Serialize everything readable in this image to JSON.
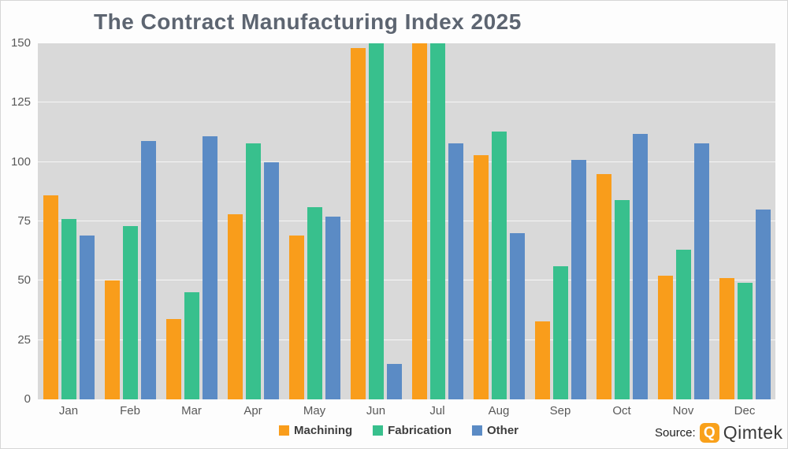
{
  "title": "The Contract Manufacturing Index 2025",
  "source": {
    "label": "Source:",
    "brand": "Qimtek",
    "logo_letter": "Q"
  },
  "colors": {
    "machining": "#f99d1b",
    "fabrication": "#38c08d",
    "other": "#5b8bc5",
    "plot_background": "#d9d9d9",
    "grid_line": "#efefef",
    "title_text": "#5d6571",
    "axis_text": "#595959"
  },
  "chart_data": {
    "type": "bar",
    "title": "The Contract Manufacturing Index 2025",
    "categories": [
      "Jan",
      "Feb",
      "Mar",
      "Apr",
      "May",
      "Jun",
      "Jul",
      "Aug",
      "Sep",
      "Oct",
      "Nov",
      "Dec"
    ],
    "series": [
      {
        "name": "Machining",
        "color": "#f99d1b",
        "values": [
          86,
          50,
          34,
          78,
          69,
          148,
          150,
          103,
          33,
          95,
          52,
          51
        ]
      },
      {
        "name": "Fabrication",
        "color": "#38c08d",
        "values": [
          76,
          73,
          45,
          108,
          81,
          150,
          150,
          113,
          56,
          84,
          63,
          49
        ]
      },
      {
        "name": "Other",
        "color": "#5b8bc5",
        "values": [
          69,
          109,
          111,
          100,
          77,
          15,
          108,
          70,
          101,
          112,
          108,
          80
        ]
      }
    ],
    "xlabel": "",
    "ylabel": "",
    "ylim": [
      0,
      150
    ],
    "y_ticks": [
      0,
      25,
      50,
      75,
      100,
      125,
      150
    ],
    "grid": true,
    "legend_position": "bottom"
  }
}
